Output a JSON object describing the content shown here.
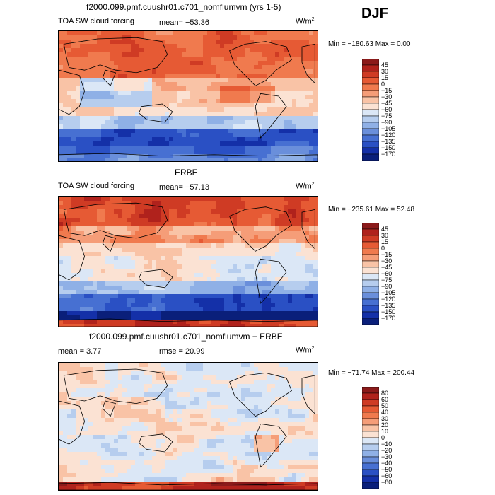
{
  "season": "DJF",
  "panels": [
    {
      "id": "model",
      "title": "f2000.099.pmf.cuushr01.c701_nomflumvm (yrs 1-5)",
      "field_label": "TOA SW cloud forcing",
      "mean_text": "mean= −53.36",
      "units_text": "W/m",
      "units_exp": "2",
      "min_max_text": "Min = −180.63 Max =    0.00",
      "levels": [
        "45",
        "30",
        "15",
        "0",
        "−15",
        "−30",
        "−45",
        "−60",
        "−75",
        "−90",
        "−105",
        "−120",
        "−135",
        "−150",
        "−170"
      ],
      "colors": [
        "#8b1a1a",
        "#b0221c",
        "#cf3b24",
        "#e65a34",
        "#f07a4e",
        "#f59d78",
        "#f9c3a6",
        "#fbe2d3",
        "#dbe7f6",
        "#b6cdee",
        "#8fb0e6",
        "#6a8fdb",
        "#4770d2",
        "#2a50c4",
        "#1430a8",
        "#0a1f7a"
      ],
      "chart_data": {
        "type": "heatmap",
        "title": "f2000.099.pmf.cuushr01.c701_nomflumvm (yrs 1-5)",
        "variable": "TOA SW cloud forcing",
        "units": "W/m2",
        "mean": -53.36,
        "min": -180.63,
        "max": 0.0,
        "contour_levels": [
          45,
          30,
          15,
          0,
          -15,
          -30,
          -45,
          -60,
          -75,
          -90,
          -105,
          -120,
          -135,
          -150,
          -170
        ]
      }
    },
    {
      "id": "obs",
      "title": "ERBE",
      "field_label": "TOA SW cloud forcing",
      "mean_text": "mean= −57.13",
      "units_text": "W/m",
      "units_exp": "2",
      "min_max_text": "Min = −235.61 Max =  52.48",
      "levels": [
        "45",
        "30",
        "15",
        "0",
        "−15",
        "−30",
        "−45",
        "−60",
        "−75",
        "−90",
        "−105",
        "−120",
        "−135",
        "−150",
        "−170"
      ],
      "colors": [
        "#8b1a1a",
        "#b0221c",
        "#cf3b24",
        "#e65a34",
        "#f07a4e",
        "#f59d78",
        "#f9c3a6",
        "#fbe2d3",
        "#dbe7f6",
        "#b6cdee",
        "#8fb0e6",
        "#6a8fdb",
        "#4770d2",
        "#2a50c4",
        "#1430a8",
        "#0a1f7a"
      ],
      "chart_data": {
        "type": "heatmap",
        "title": "ERBE",
        "variable": "TOA SW cloud forcing",
        "units": "W/m2",
        "mean": -57.13,
        "min": -235.61,
        "max": 52.48,
        "contour_levels": [
          45,
          30,
          15,
          0,
          -15,
          -30,
          -45,
          -60,
          -75,
          -90,
          -105,
          -120,
          -135,
          -150,
          -170
        ]
      }
    },
    {
      "id": "diff",
      "title": "f2000.099.pmf.cuushr01.c701_nomflumvm − ERBE",
      "mean_text": "mean =    3.77",
      "rmse_text": "rmse =   20.99",
      "units_text": "W/m",
      "units_exp": "2",
      "min_max_text": "Min = −71.74 Max = 200.44",
      "levels": [
        "80",
        "60",
        "50",
        "40",
        "30",
        "20",
        "10",
        "0",
        "−10",
        "−20",
        "−30",
        "−40",
        "−50",
        "−60",
        "−80"
      ],
      "colors": [
        "#8b1a1a",
        "#b0221c",
        "#cf3b24",
        "#e65a34",
        "#f07a4e",
        "#f59d78",
        "#f9c3a6",
        "#fbe2d3",
        "#dbe7f6",
        "#b6cdee",
        "#8fb0e6",
        "#6a8fdb",
        "#4770d2",
        "#2a50c4",
        "#1430a8",
        "#0a1f7a"
      ],
      "chart_data": {
        "type": "heatmap",
        "title": "f2000.099.pmf.cuushr01.c701_nomflumvm - ERBE",
        "mean": 3.77,
        "rmse": 20.99,
        "units": "W/m2",
        "min": -71.74,
        "max": 200.44,
        "contour_levels": [
          80,
          60,
          50,
          40,
          30,
          20,
          10,
          0,
          -10,
          -20,
          -30,
          -40,
          -50,
          -60,
          -80
        ]
      }
    }
  ]
}
